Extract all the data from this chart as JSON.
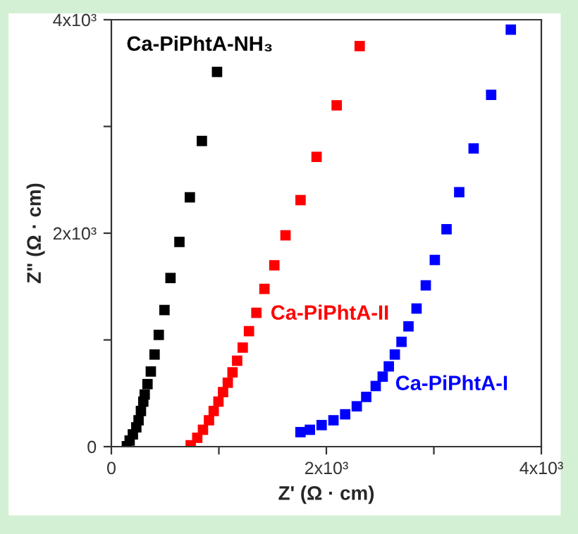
{
  "chart_data": {
    "type": "scatter",
    "xlabel": "Z' (Ω · cm)",
    "ylabel": "Z\" (Ω · cm)",
    "marker": "square",
    "grid": false,
    "legend": false,
    "xlim": [
      0,
      4000
    ],
    "ylim": [
      0,
      4000
    ],
    "xticks": [
      0,
      {
        "value": 1000,
        "label": null
      },
      {
        "value": 2000,
        "label": "2x10³"
      },
      {
        "value": 3000,
        "label": null
      },
      {
        "value": 4000,
        "label": "4x10³"
      }
    ],
    "yticks": [
      0,
      {
        "value": 1000,
        "label": null
      },
      {
        "value": 2000,
        "label": "2x10³"
      },
      {
        "value": 3000,
        "label": null
      },
      {
        "value": 4000,
        "label": "4x10³"
      }
    ],
    "series": [
      {
        "name": "Ca-PiPhtA-NH₃",
        "color": "#000000",
        "x": [
          983,
          842,
          730,
          633,
          550,
          494,
          441,
          402,
          367,
          336,
          310,
          297,
          275,
          253,
          232,
          200,
          170,
          144
        ],
        "values": [
          3511,
          2864,
          2336,
          1918,
          1580,
          1280,
          1047,
          863,
          704,
          586,
          488,
          422,
          334,
          247,
          181,
          115,
          57,
          4
        ]
      },
      {
        "name": "Ca-PiPhtA-II",
        "color": "#ff0000",
        "x": [
          2310,
          2096,
          1909,
          1760,
          1620,
          1516,
          1424,
          1349,
          1280,
          1222,
          1170,
          1127,
          1083,
          1039,
          996,
          952,
          908,
          852,
          799,
          738
        ],
        "values": [
          3753,
          3198,
          2715,
          2310,
          1980,
          1699,
          1478,
          1254,
          1082,
          928,
          805,
          696,
          599,
          511,
          422,
          334,
          247,
          158,
          83,
          13
        ]
      },
      {
        "name": "Ca-PiPhtA-I",
        "color": "#0000ff",
        "x": [
          3716,
          3533,
          3370,
          3236,
          3118,
          3009,
          2925,
          2839,
          2764,
          2699,
          2637,
          2581,
          2524,
          2459,
          2371,
          2283,
          2175,
          2066,
          1956,
          1847,
          1759
        ],
        "values": [
          3907,
          3296,
          2794,
          2384,
          2037,
          1749,
          1511,
          1294,
          1127,
          982,
          863,
          752,
          656,
          568,
          466,
          378,
          303,
          247,
          202,
          158,
          136
        ]
      }
    ]
  }
}
